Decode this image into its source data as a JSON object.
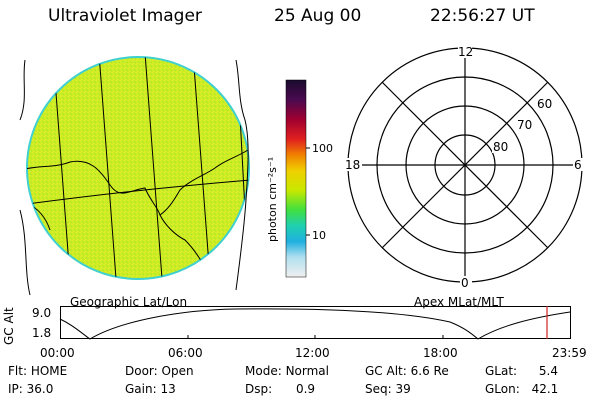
{
  "header": {
    "instrument": "Ultraviolet Imager",
    "date": "25 Aug 00",
    "time": "22:56:27 UT"
  },
  "geo_panel": {
    "label": "Geographic Lat/Lon",
    "image_color": "#ccee22",
    "rim_color": "#40d0d0"
  },
  "colorbar": {
    "unit_label": "photon cm⁻²s⁻¹",
    "ticks": [
      "100",
      "10"
    ],
    "stops": [
      "#1a0b2e",
      "#4a0a4f",
      "#a00030",
      "#e02020",
      "#f08000",
      "#f0d000",
      "#c8e800",
      "#40e040",
      "#20d0b0",
      "#20b0e0",
      "#b0e0f0",
      "#f0f0f0"
    ]
  },
  "polar_panel": {
    "label": "Apex MLat/MLT",
    "mlt_labels": [
      "12",
      "18",
      "6",
      "0"
    ],
    "mlat_labels": [
      "60",
      "70",
      "80"
    ]
  },
  "altitude_plot": {
    "ylabel": "GC Alt",
    "yticks": [
      "9.0",
      "1.8"
    ],
    "xticks": [
      "00:00",
      "06:00",
      "12:00",
      "18:00",
      "23:59"
    ],
    "marker_time": "22:56",
    "marker_color": "#d02020"
  },
  "info": {
    "row1": [
      {
        "label": "Flt:",
        "value": "HOME"
      },
      {
        "label": "Door:",
        "value": "Open"
      },
      {
        "label": "Mode:",
        "value": "Normal"
      },
      {
        "label": "GC Alt:",
        "value": "6.6 Re"
      },
      {
        "label": "GLat:",
        "value": "5.4"
      }
    ],
    "row2": [
      {
        "label": "IP:",
        "value": "36.0"
      },
      {
        "label": "Gain:",
        "value": "13"
      },
      {
        "label": "Dsp:",
        "value": "0.9"
      },
      {
        "label": "Seq:",
        "value": "39"
      },
      {
        "label": "GLon:",
        "value": "42.1"
      }
    ]
  }
}
